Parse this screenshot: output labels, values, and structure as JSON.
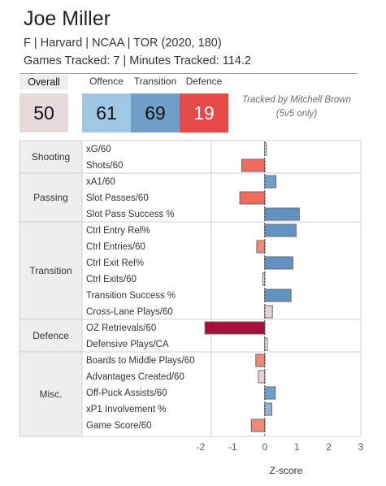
{
  "player": {
    "name": "Joe Miller",
    "info": "F | Harvard | NCAA | TOR (2020, 180)",
    "tracked": "Games Tracked: 7 | Minutes Tracked: 114.2"
  },
  "scores": {
    "overall": {
      "label": "Overall",
      "value": "50",
      "color": "#e6d9d9"
    },
    "offence": {
      "label": "Offence",
      "value": "61",
      "color": "#9fc6e3"
    },
    "transition": {
      "label": "Transition",
      "value": "69",
      "color": "#6f9fc8"
    },
    "defence": {
      "label": "Defence",
      "value": "19",
      "color": "#e84a48"
    }
  },
  "tracked_by": {
    "line1": "Tracked by Mitchell Brown",
    "line2": "(5v5 only)"
  },
  "chart_data": {
    "type": "bar",
    "orientation": "horizontal",
    "xlabel": "Z-score",
    "xlim": [
      -2.0,
      3.0
    ],
    "xticks": [
      "-2",
      "-1",
      "0",
      "1",
      "2",
      "3"
    ],
    "xtick_values": [
      -2,
      -1,
      0,
      1,
      2,
      3
    ],
    "groups": [
      {
        "name": "Shooting",
        "metrics": [
          {
            "label": "xG/60",
            "value": 0.02,
            "color": "#ffffff"
          },
          {
            "label": "Shots/60",
            "value": -0.72,
            "color": "#ee6b5e"
          }
        ]
      },
      {
        "name": "Passing",
        "metrics": [
          {
            "label": "xA1/60",
            "value": 0.35,
            "color": "#6f9fc8"
          },
          {
            "label": "Slot Passes/60",
            "value": -0.78,
            "color": "#ee6b5e"
          },
          {
            "label": "Slot Pass Success %",
            "value": 1.08,
            "color": "#6391c0"
          }
        ]
      },
      {
        "name": "Transition",
        "metrics": [
          {
            "label": "Ctrl Entry Rel%",
            "value": 0.98,
            "color": "#6391c0"
          },
          {
            "label": "Ctrl Entries/60",
            "value": -0.25,
            "color": "#ee8878"
          },
          {
            "label": "Ctrl Exit Rel%",
            "value": 0.88,
            "color": "#6391c0"
          },
          {
            "label": "Ctrl Exits/60",
            "value": -0.06,
            "color": "#eeeeee"
          },
          {
            "label": "Transition Success %",
            "value": 0.82,
            "color": "#6391c0"
          },
          {
            "label": "Cross-Lane Plays/60",
            "value": 0.24,
            "color": "#e6d3d3"
          }
        ]
      },
      {
        "name": "Defence",
        "metrics": [
          {
            "label": "OZ Retrievals/60",
            "value": -1.87,
            "color": "#a50f3c"
          },
          {
            "label": "Defensive Plays/CA",
            "value": 0.08,
            "color": "#eeeeee"
          }
        ]
      },
      {
        "name": "Misc.",
        "metrics": [
          {
            "label": "Boards to Middle Plays/60",
            "value": -0.28,
            "color": "#ee8878"
          },
          {
            "label": "Advantages Created/60",
            "value": -0.2,
            "color": "#e6d3d3"
          },
          {
            "label": "Off-Puck Assists/60",
            "value": 0.33,
            "color": "#6f9fc8"
          },
          {
            "label": "xP1 Involvement %",
            "value": 0.22,
            "color": "#8fb6da"
          },
          {
            "label": "Game Score/60",
            "value": -0.42,
            "color": "#ee8878"
          }
        ]
      }
    ]
  }
}
